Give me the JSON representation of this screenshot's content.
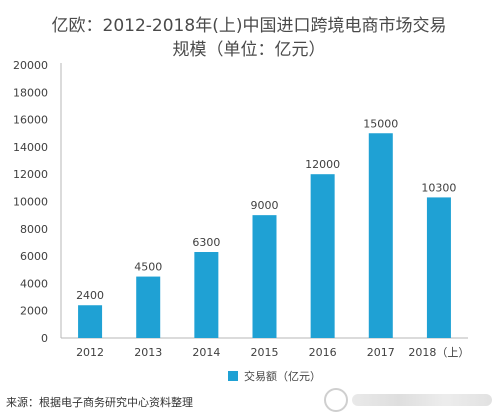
{
  "chart_data": {
    "type": "bar",
    "title_line1": "亿欧：2012-2018年(上)中国进口跨境电商市场交易",
    "title_line2": "规模（单位：亿元）",
    "categories": [
      "2012",
      "2013",
      "2014",
      "2015",
      "2016",
      "2017",
      "2018（上）"
    ],
    "series": [
      {
        "name": "交易额（亿元）",
        "values": [
          2400,
          4500,
          6300,
          9000,
          12000,
          15000,
          10300
        ]
      }
    ],
    "y_ticks": [
      "0",
      "2000",
      "4000",
      "6000",
      "8000",
      "10000",
      "12000",
      "14000",
      "16000",
      "18000",
      "20000"
    ],
    "ylim": [
      0,
      20000
    ],
    "grid": true,
    "legend_position": "bottom",
    "colors": {
      "bar": "#1fa1d4",
      "axis": "#b7b7b7",
      "label": "#404040"
    }
  },
  "source_text": "来源：根据电子商务研究中心资料整理",
  "watermark": {
    "icon": "watermark-logo-icon"
  }
}
